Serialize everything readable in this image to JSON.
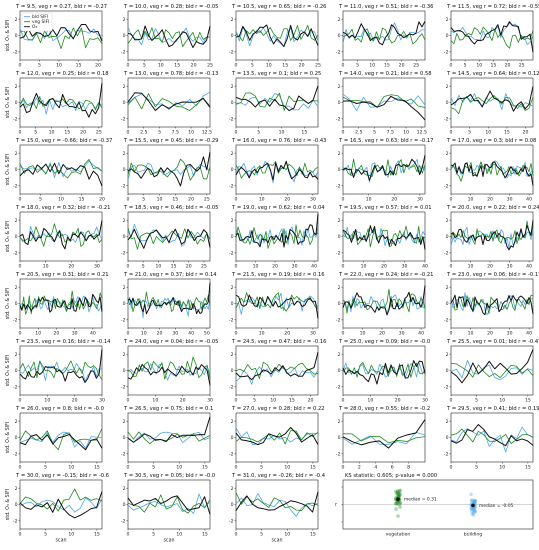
{
  "legend": {
    "bld": "bld SIFI",
    "veg": "veg SIFI",
    "o3": "O₃"
  },
  "colors": {
    "veg": "#4da6e8",
    "bld": "#1f8a1f",
    "o3": "#111111",
    "median": "#111111"
  },
  "ylabel_panels": "std. O₃ & SIFI",
  "xlabel_panels": "scan",
  "panels": [
    {
      "title": "T = 9.5, veg r = 0.27, bld r = -0.27",
      "n": 21,
      "xticks": [
        0,
        5,
        10,
        15,
        20
      ],
      "xlim": [
        0,
        21
      ]
    },
    {
      "title": "T = 10.0, veg r = 0.28; bld r = -0.05",
      "n": 25,
      "xticks": [
        0,
        5,
        10,
        15,
        20,
        25
      ],
      "xlim": [
        0,
        25
      ]
    },
    {
      "title": "T = 10.5, veg r = 0.65; bld r = -0.26",
      "n": 25,
      "xticks": [
        0,
        5,
        10,
        15,
        20,
        25
      ],
      "xlim": [
        0,
        25
      ]
    },
    {
      "title": "T = 11.0, veg r = 0.51; bld r = -0.36",
      "n": 28,
      "xticks": [
        0,
        5,
        10,
        15,
        20,
        25
      ],
      "xlim": [
        0,
        28
      ]
    },
    {
      "title": "T = 11.5, veg r = 0.72; bld r = -0.55",
      "n": 29,
      "xticks": [
        0,
        5,
        10,
        15,
        20,
        25
      ],
      "xlim": [
        0,
        29
      ]
    },
    {
      "title": "T = 12.0, veg r = 0.25; bld r = 0.18",
      "n": 26,
      "xticks": [
        0,
        5,
        10,
        15,
        20,
        25
      ],
      "xlim": [
        0,
        26
      ]
    },
    {
      "title": "T = 13.0, veg r = 0.78; bld r = -0.13",
      "n": 13,
      "xticks": [
        0.0,
        2.5,
        5.0,
        7.5,
        10.0,
        12.5
      ],
      "xlim": [
        0,
        13
      ]
    },
    {
      "title": "T = 13.5, veg r = 0.1; bld r = 0.25",
      "n": 18,
      "xticks": [
        0,
        5,
        10,
        15
      ],
      "xlim": [
        0,
        18
      ]
    },
    {
      "title": "T = 14.0, veg r = 0.21; bld r = 0.58",
      "n": 13,
      "xticks": [
        0.0,
        2.5,
        5.0,
        7.5,
        10.0,
        12.5
      ],
      "xlim": [
        0,
        13
      ]
    },
    {
      "title": "T = 14.5, veg r = 0.64; bld r = 0.12",
      "n": 22,
      "xticks": [
        0,
        5,
        10,
        15,
        20
      ],
      "xlim": [
        0,
        22
      ]
    },
    {
      "title": "T = 15.0, veg r = -0.66; bld r = -0.37",
      "n": 20,
      "xticks": [
        0,
        5,
        10,
        15,
        20
      ],
      "xlim": [
        0,
        20
      ]
    },
    {
      "title": "T = 15.5, veg r = 0.45; bld r = -0.29",
      "n": 26,
      "xticks": [
        0,
        5,
        10,
        15,
        20,
        25
      ],
      "xlim": [
        0,
        26
      ]
    },
    {
      "title": "T = 16.0, veg r = 0.76; bld r = -0.43",
      "n": 32,
      "xticks": [
        0,
        10,
        20,
        30
      ],
      "xlim": [
        0,
        32
      ]
    },
    {
      "title": "T = 16.5, veg r = 0.63; bld r = -0.17",
      "n": 32,
      "xticks": [
        0,
        10,
        20,
        30
      ],
      "xlim": [
        0,
        32
      ]
    },
    {
      "title": "T = 17.0, veg r = 0.3; bld r = 0.08",
      "n": 42,
      "xticks": [
        0,
        10,
        20,
        30,
        40
      ],
      "xlim": [
        0,
        42
      ]
    },
    {
      "title": "T = 18.0, veg r = 0.32; bld r = -0.21",
      "n": 32,
      "xticks": [
        0,
        10,
        20,
        30
      ],
      "xlim": [
        0,
        32
      ]
    },
    {
      "title": "T = 18.5, veg r = 0.46; bld r = -0.05",
      "n": 27,
      "xticks": [
        0,
        5,
        10,
        15,
        20,
        25
      ],
      "xlim": [
        0,
        27
      ]
    },
    {
      "title": "T = 19.0, veg r = 0.62; bld r = 0.04",
      "n": 42,
      "xticks": [
        0,
        10,
        20,
        30,
        40
      ],
      "xlim": [
        0,
        42
      ]
    },
    {
      "title": "T = 19.5, veg r = 0.57; bld r = 0.01",
      "n": 40,
      "xticks": [
        0,
        10,
        20,
        30,
        40
      ],
      "xlim": [
        0,
        40
      ]
    },
    {
      "title": "T = 20.0, veg r = 0.22; bld r = 0.24",
      "n": 42,
      "xticks": [
        0,
        10,
        20,
        30,
        40
      ],
      "xlim": [
        0,
        42
      ]
    },
    {
      "title": "T = 20.5, veg r = 0.31; bld r = 0.21",
      "n": 45,
      "xticks": [
        0,
        10,
        20,
        30,
        40
      ],
      "xlim": [
        0,
        45
      ]
    },
    {
      "title": "T = 21.0, veg r = 0.37; bld r = 0.14",
      "n": 50,
      "xticks": [
        0,
        10,
        20,
        30,
        40,
        50
      ],
      "xlim": [
        0,
        52
      ]
    },
    {
      "title": "T = 21.5, veg r = 0.19; bld r = 0.16",
      "n": 32,
      "xticks": [
        0,
        10,
        20,
        30
      ],
      "xlim": [
        0,
        32
      ]
    },
    {
      "title": "T = 22.0, veg r = 0.24; bld r = -0.21",
      "n": 42,
      "xticks": [
        0,
        10,
        20,
        30,
        40
      ],
      "xlim": [
        0,
        42
      ]
    },
    {
      "title": "T = 23.0, veg r = 0.06; bld r = -0.17",
      "n": 42,
      "xticks": [
        0,
        10,
        20,
        30,
        40
      ],
      "xlim": [
        0,
        42
      ]
    },
    {
      "title": "T = 23.5, veg r = 0.16; bld r = -0.14",
      "n": 30,
      "xticks": [
        0,
        10,
        20,
        30
      ],
      "xlim": [
        0,
        30
      ]
    },
    {
      "title": "T = 24.0, veg r = 0.04; bld r = -0.05",
      "n": 30,
      "xticks": [
        0,
        10,
        20,
        30
      ],
      "xlim": [
        0,
        30
      ]
    },
    {
      "title": "T = 24.5, veg r = 0.47; bld r = -0.16",
      "n": 22,
      "xticks": [
        0,
        5,
        10,
        15,
        20
      ],
      "xlim": [
        0,
        22
      ]
    },
    {
      "title": "T = 25.0, veg r = 0.09; bld r = -0.0",
      "n": 30,
      "xticks": [
        0,
        10,
        20,
        30
      ],
      "xlim": [
        0,
        30
      ]
    },
    {
      "title": "T = 25.5, veg r = 0.01; bld r = -0.47",
      "n": 16,
      "xticks": [
        0,
        5,
        10,
        15
      ],
      "xlim": [
        0,
        16
      ]
    },
    {
      "title": "T = 26.0, veg r = 0.8; bld r = -0.0",
      "n": 16,
      "xticks": [
        0,
        5,
        10,
        15
      ],
      "xlim": [
        0,
        16
      ]
    },
    {
      "title": "T = 26.5, veg r = 0.75; bld r = 0.1",
      "n": 16,
      "xticks": [
        0,
        5,
        10,
        15
      ],
      "xlim": [
        0,
        16
      ]
    },
    {
      "title": "T = 27.0, veg r = 0.28; bld r = 0.22",
      "n": 16,
      "xticks": [
        0,
        5,
        10,
        15
      ],
      "xlim": [
        0,
        16
      ]
    },
    {
      "title": "T = 28.0, veg r = 0.55; bld r = -0.2",
      "n": 10,
      "xticks": [
        0,
        2,
        4,
        6,
        8
      ],
      "xlim": [
        0,
        10
      ]
    },
    {
      "title": "T = 29.5, veg r = 0.41; bld r = 0.19",
      "n": 16,
      "xticks": [
        0,
        5,
        10,
        15
      ],
      "xlim": [
        0,
        16
      ]
    },
    {
      "title": "T = 30.0, veg r = -0.15; bld r = -0.6",
      "n": 16,
      "xticks": [
        0,
        5,
        10,
        15
      ],
      "xlim": [
        0,
        16
      ]
    },
    {
      "title": "T = 30.5, veg r = 0.05; bld r = -0.0",
      "n": 16,
      "xticks": [
        0,
        5,
        10,
        15
      ],
      "xlim": [
        0,
        16
      ]
    },
    {
      "title": "T = 31.0, veg r = -0.26; bld r = -0.4",
      "n": 16,
      "xticks": [
        0,
        5,
        10,
        15
      ],
      "xlim": [
        0,
        16
      ]
    }
  ],
  "summary": {
    "title": "KS statistic: 0.605; p-value = 0.000",
    "ylabel": "r",
    "categories": [
      "vegetation",
      "building"
    ],
    "medians": [
      0.31,
      -0.05
    ],
    "median_labels": [
      "median = 0.31",
      "median = -0.05"
    ],
    "yticks": [
      -1,
      0,
      1
    ]
  },
  "chart_data": {
    "type": "line",
    "xlabel": "scan",
    "ylabel": "std. O₃ & SIFI",
    "ylim": [
      -3,
      3
    ],
    "series_names": [
      "bld SIFI",
      "veg SIFI",
      "O₃"
    ],
    "correlations": {
      "T": [
        9.5,
        10.0,
        10.5,
        11.0,
        11.5,
        12.0,
        13.0,
        13.5,
        14.0,
        14.5,
        15.0,
        15.5,
        16.0,
        16.5,
        17.0,
        18.0,
        18.5,
        19.0,
        19.5,
        20.0,
        20.5,
        21.0,
        21.5,
        22.0,
        23.0,
        23.5,
        24.0,
        24.5,
        25.0,
        25.5,
        26.0,
        26.5,
        27.0,
        28.0,
        29.5,
        30.0,
        30.5,
        31.0
      ],
      "veg_r": [
        0.27,
        0.28,
        0.65,
        0.51,
        0.72,
        0.25,
        0.78,
        0.1,
        0.21,
        0.64,
        -0.66,
        0.45,
        0.76,
        0.63,
        0.3,
        0.32,
        0.46,
        0.62,
        0.57,
        0.22,
        0.31,
        0.37,
        0.19,
        0.24,
        0.06,
        0.16,
        0.04,
        0.47,
        0.09,
        0.01,
        0.8,
        0.75,
        0.28,
        0.55,
        0.41,
        -0.15,
        0.05,
        -0.26
      ],
      "bld_r": [
        -0.27,
        -0.05,
        -0.26,
        -0.36,
        -0.55,
        0.18,
        -0.13,
        0.25,
        0.58,
        0.12,
        -0.37,
        -0.29,
        -0.43,
        -0.17,
        0.08,
        -0.21,
        -0.05,
        0.04,
        0.01,
        0.24,
        0.21,
        0.14,
        0.16,
        -0.21,
        -0.17,
        -0.14,
        -0.05,
        -0.16,
        -0.0,
        -0.47,
        -0.0,
        0.1,
        0.22,
        -0.2,
        0.19,
        -0.6,
        -0.0,
        -0.4
      ]
    },
    "ks_statistic": 0.605,
    "p_value": 0.0,
    "median_veg_r": 0.31,
    "median_bld_r": -0.05
  }
}
